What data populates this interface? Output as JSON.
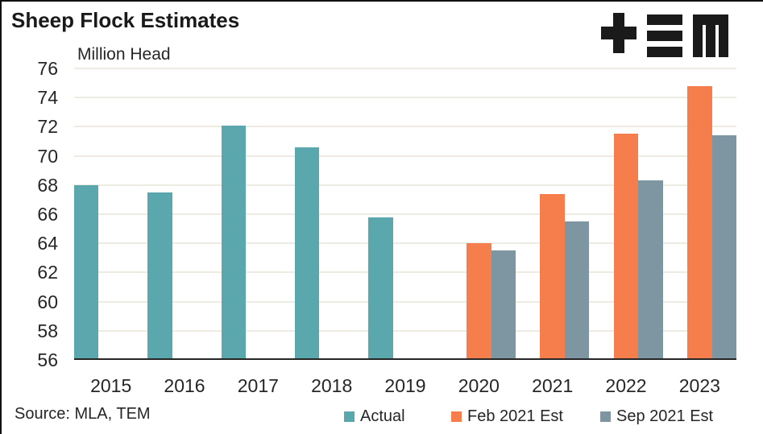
{
  "title": "Sheep Flock Estimates",
  "y_axis_label": "Million Head",
  "source": "Source: MLA, TEM",
  "logo": {
    "name": "tem-logo",
    "glyphs": "plus, triple-bar, M",
    "color": "#1a1a1a"
  },
  "colors": {
    "actual": "#5BA7AE",
    "feb_2021_est": "#F57E4C",
    "sep_2021_est": "#7D96A1",
    "gridline": "#EDEBE2",
    "axis": "#262626",
    "text": "#262626"
  },
  "chart_data": {
    "type": "bar",
    "title": "Sheep Flock Estimates",
    "xlabel": "",
    "ylabel": "Million Head",
    "categories": [
      "2015",
      "2016",
      "2017",
      "2018",
      "2019",
      "2020",
      "2021",
      "2022",
      "2023"
    ],
    "series": [
      {
        "name": "Actual",
        "color": "#5BA7AE",
        "values": [
          68.0,
          67.5,
          72.1,
          70.6,
          65.8,
          null,
          null,
          null,
          null
        ]
      },
      {
        "name": "Feb 2021 Est",
        "color": "#F57E4C",
        "values": [
          null,
          null,
          null,
          null,
          null,
          64.0,
          67.4,
          71.5,
          74.8
        ]
      },
      {
        "name": "Sep 2021 Est",
        "color": "#7D96A1",
        "values": [
          null,
          null,
          null,
          null,
          null,
          63.5,
          65.5,
          68.3,
          71.4
        ]
      }
    ],
    "ylim": [
      56,
      76
    ],
    "ytick_step": 2,
    "yticks": [
      76,
      74,
      72,
      70,
      68,
      66,
      64,
      62,
      60,
      58,
      56
    ],
    "grid": true,
    "legend_position": "bottom"
  },
  "legend": [
    {
      "label": "Actual",
      "color": "#5BA7AE"
    },
    {
      "label": "Feb 2021 Est",
      "color": "#F57E4C"
    },
    {
      "label": "Sep 2021 Est",
      "color": "#7D96A1"
    }
  ]
}
